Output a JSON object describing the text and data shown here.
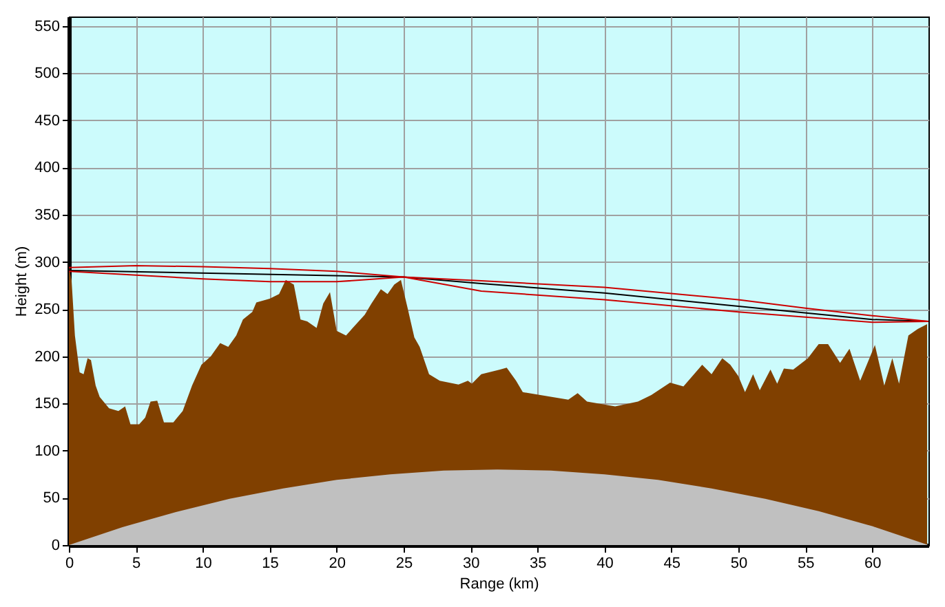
{
  "chart_data": {
    "type": "area",
    "xlabel": "Range (km)",
    "ylabel": "Height (m)",
    "xlim": [
      0,
      64.2
    ],
    "ylim": [
      0,
      560
    ],
    "xticks": [
      0,
      5,
      10,
      15,
      20,
      25,
      30,
      35,
      40,
      45,
      50,
      55,
      60
    ],
    "yticks": [
      0,
      50,
      100,
      150,
      200,
      250,
      300,
      350,
      400,
      450,
      500,
      550
    ],
    "grid": true,
    "series": [
      {
        "color": "#804000",
        "x": [
          0,
          0.2,
          0.45,
          0.8,
          1.1,
          1.4,
          1.65,
          2.0,
          2.3,
          3.0,
          3.7,
          4.2,
          4.6,
          5.25,
          5.7,
          6.1,
          6.6,
          7.1,
          7.8,
          8.5,
          9.2,
          9.9,
          10.6,
          11.3,
          11.9,
          12.5,
          13.0,
          13.7,
          14.0,
          15.0,
          15.7,
          16.2,
          16.8,
          17.3,
          17.8,
          18.5,
          19.0,
          19.5,
          20.0,
          20.7,
          21.2,
          22.1,
          22.6,
          23.3,
          23.8,
          24.3,
          24.8,
          25.3,
          25.8,
          26.2,
          26.9,
          27.7,
          29.1,
          29.8,
          30.1,
          30.8,
          32.2,
          32.7,
          33.4,
          33.9,
          35.6,
          37.3,
          38.0,
          38.7,
          40.8,
          42.5,
          43.5,
          44.9,
          45.9,
          47.3,
          48.0,
          48.8,
          49.4,
          50.0,
          50.5,
          51.1,
          51.6,
          52.4,
          52.9,
          53.4,
          54.1,
          55.2,
          56.0,
          56.7,
          57.6,
          58.3,
          59.1,
          60.2,
          60.9,
          61.5,
          62.0,
          62.7,
          63.4,
          64.1
        ],
        "values": [
          295,
          281,
          222,
          183,
          181,
          198,
          196,
          169,
          157,
          145,
          142,
          147,
          128,
          128,
          135,
          152,
          153,
          130,
          130,
          142,
          169,
          191,
          200,
          214,
          210,
          222,
          239,
          247,
          257,
          261,
          266,
          281,
          276,
          239,
          237,
          230,
          256,
          268,
          227,
          222,
          230,
          244,
          256,
          271,
          266,
          276,
          281,
          251,
          220,
          210,
          181,
          174,
          170,
          174,
          171,
          181,
          186,
          188,
          174,
          162,
          158,
          154,
          161,
          152,
          147,
          152,
          159,
          172,
          168,
          191,
          181,
          198,
          191,
          179,
          162,
          181,
          164,
          186,
          171,
          187,
          186,
          198,
          213,
          213,
          193,
          208,
          174,
          212,
          169,
          198,
          171,
          222,
          229,
          234
        ]
      },
      {
        "color": "#c0c0c0",
        "x": [
          0,
          4,
          8,
          12,
          16,
          20,
          24,
          28,
          32,
          36,
          40,
          44,
          48,
          52,
          56,
          60,
          64.2
        ],
        "values": [
          0,
          19,
          35,
          49,
          60,
          69,
          75,
          79,
          80,
          79,
          75,
          69,
          60,
          49,
          36,
          20,
          0
        ]
      },
      {
        "type": "line",
        "color": "#000000",
        "x": [
          0,
          25,
          30.8,
          40,
          50,
          60,
          64.2
        ],
        "values": [
          291,
          284,
          277,
          267,
          253,
          239,
          237
        ]
      },
      {
        "type": "line",
        "color": "#cc0000",
        "x": [
          0,
          5,
          10,
          15,
          20,
          25,
          30.8,
          40,
          50,
          60,
          64.2
        ],
        "values": [
          294,
          296,
          295,
          293,
          290,
          284,
          269,
          260,
          247,
          236,
          237
        ]
      },
      {
        "type": "line",
        "color": "#cc0000",
        "x": [
          0,
          5,
          10,
          15,
          20,
          25,
          30.8,
          40,
          50,
          55,
          60,
          64.2
        ],
        "values": [
          290,
          286,
          282,
          279,
          279,
          284,
          280,
          273,
          260,
          251,
          243,
          237
        ]
      }
    ]
  }
}
